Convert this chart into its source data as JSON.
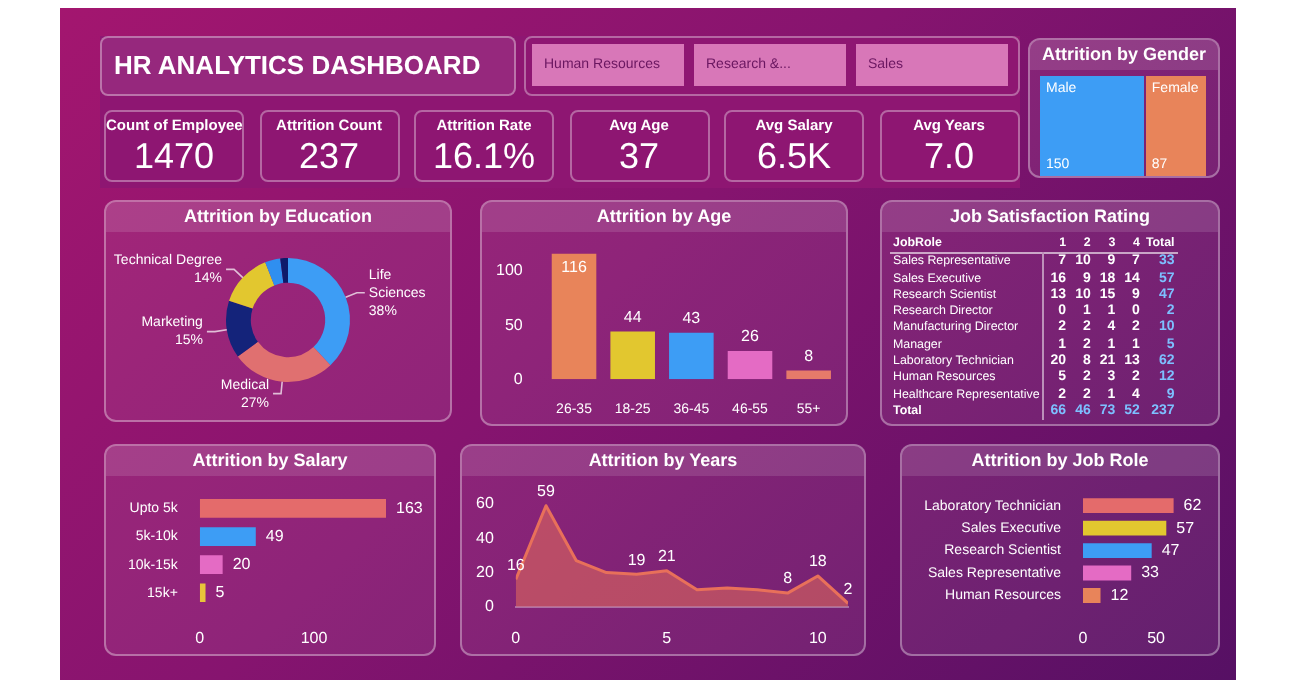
{
  "chart_data": [
    {
      "type": "other",
      "title": "HR ANALYTICS DASHBOARD",
      "annotations": [
        "Human Resources",
        "Research &...",
        "Sales"
      ],
      "categories": [
        "Count of Employee",
        "Attrition Count",
        "Attrition Rate",
        "Avg Age",
        "Avg Salary",
        "Avg Years"
      ],
      "value_labels": [
        "1470",
        "237",
        "16.1%",
        "37",
        "6.5K",
        "7.0"
      ]
    },
    {
      "type": "other",
      "title": "Attrition by Gender",
      "categories": [
        "Male",
        "Female"
      ],
      "values": [
        150,
        87
      ],
      "colors": [
        "#3d9df5",
        "#e8845a"
      ],
      "data_labels": true
    },
    {
      "type": "donut",
      "title": "Attrition by Education",
      "categories": [
        "Life Sciences",
        "Medical",
        "Marketing",
        "Technical Degree",
        null,
        null
      ],
      "values": [
        38,
        27,
        15,
        14,
        4,
        2
      ],
      "colors": [
        "#3d9df5",
        "#e07070",
        "#14237a",
        "#e2c72f",
        "#2f8ff0",
        "#0e1a6a"
      ],
      "value_labels": [
        "38%",
        "27%",
        "15%",
        "14%",
        null,
        null
      ]
    },
    {
      "type": "bar",
      "title": "Attrition by Age",
      "categories": [
        "26-35",
        "18-25",
        "36-45",
        "46-55",
        "55+"
      ],
      "values": [
        116,
        44,
        43,
        26,
        8
      ],
      "colors": [
        "#e8845a",
        "#e2c72f",
        "#3d9df5",
        "#e46bc4",
        "#e67a6a"
      ],
      "ylim": [
        0,
        118
      ],
      "yticks": [
        0,
        50,
        100
      ],
      "data_labels": true
    },
    {
      "type": "heatmap",
      "title": "Job Satisfaction Rating",
      "data_labels": true,
      "ylabel": "JobRole",
      "categories": [
        "1",
        "2",
        "3",
        "4",
        "Total"
      ],
      "y_categories": [
        "Sales Representative",
        "Sales Executive",
        "Research Scientist",
        "Research Director",
        "Manufacturing Director",
        "Manager",
        "Laboratory Technician",
        "Human Resources",
        "Healthcare Representative",
        "Total"
      ],
      "cells": [
        [
          7,
          10,
          9,
          7,
          33
        ],
        [
          16,
          9,
          18,
          14,
          57
        ],
        [
          13,
          10,
          15,
          9,
          47
        ],
        [
          0,
          1,
          1,
          0,
          2
        ],
        [
          2,
          2,
          4,
          2,
          10
        ],
        [
          1,
          2,
          1,
          1,
          5
        ],
        [
          20,
          8,
          21,
          13,
          62
        ],
        [
          5,
          2,
          3,
          2,
          12
        ],
        [
          2,
          2,
          1,
          4,
          9
        ],
        [
          66,
          46,
          73,
          52,
          237
        ]
      ]
    },
    {
      "type": "bar",
      "title": "Attrition by Salary",
      "orientation": "horizontal",
      "categories": [
        "Upto 5k",
        "5k-10k",
        "10k-15k",
        "15k+"
      ],
      "values": [
        163,
        49,
        20,
        5
      ],
      "colors": [
        "#e46b6b",
        "#3d9df5",
        "#e46bc4",
        "#e8c33a"
      ],
      "xlim": [
        0,
        170
      ],
      "xticks": [
        0,
        100
      ],
      "data_labels": true
    },
    {
      "type": "area",
      "title": "Attrition by Years",
      "x": [
        0,
        1,
        2,
        3,
        4,
        5,
        6,
        7,
        8,
        9,
        10,
        11
      ],
      "values": [
        16,
        59,
        27,
        20,
        19,
        21,
        10,
        11,
        10,
        8,
        18,
        2
      ],
      "value_labels": [
        "16",
        "59",
        null,
        null,
        "19",
        "21",
        null,
        null,
        null,
        "8",
        "18",
        "2"
      ],
      "color": "#e8705a",
      "xlim": [
        0,
        11
      ],
      "xticks": [
        0,
        5,
        10
      ],
      "ylim": [
        0,
        60
      ],
      "yticks": [
        0,
        20,
        40,
        60
      ]
    },
    {
      "type": "bar",
      "title": "Attrition by Job Role",
      "orientation": "horizontal",
      "categories": [
        "Laboratory Technician",
        "Sales Executive",
        "Research Scientist",
        "Sales Representative",
        "Human Resources"
      ],
      "values": [
        62,
        57,
        47,
        33,
        12
      ],
      "colors": [
        "#e46b6b",
        "#e2c72f",
        "#3d9df5",
        "#e46bc4",
        "#e8845a"
      ],
      "xlim": [
        0,
        65
      ],
      "xticks": [
        0,
        50
      ],
      "data_labels": true
    }
  ]
}
